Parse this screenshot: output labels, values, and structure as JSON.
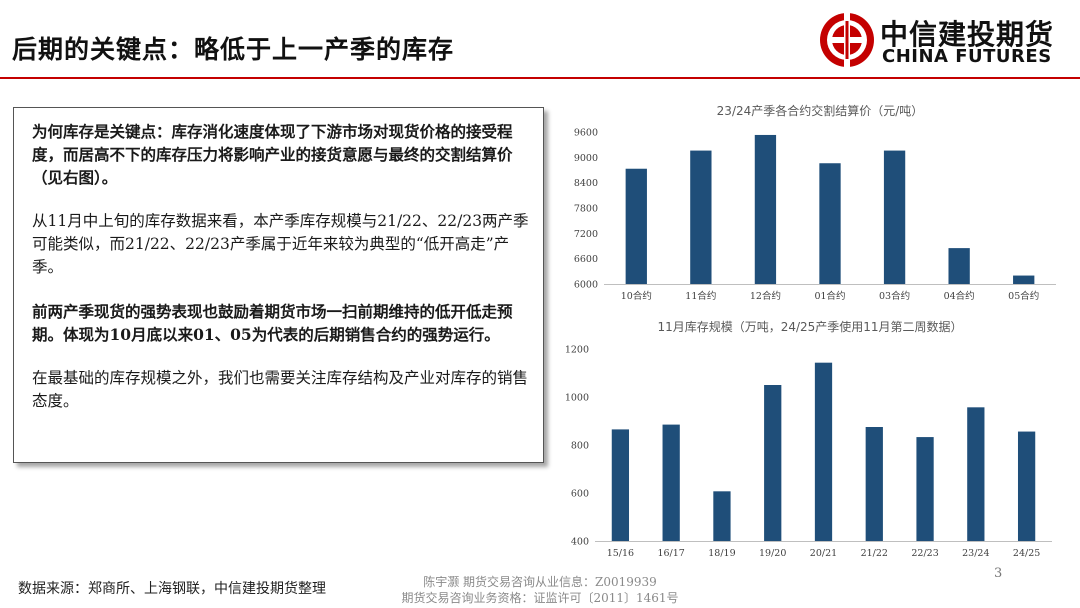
{
  "header": {
    "title": "后期的关键点：略低于上一产季的库存",
    "logo_cn": "中信建投期货",
    "logo_en": "CHINA FUTURES"
  },
  "textbox": {
    "p1": "为何库存是关键点：库存消化速度体现了下游市场对现货价格的接受程度，而居高不下的库存压力将影响产业的接货意愿与最终的交割结算价（见右图）。",
    "p2": "从11月中上旬的库存数据来看，本产季库存规模与21/22、22/23两产季可能类似，而21/22、22/23产季属于近年来较为典型的“低开高走”产季。",
    "p3": "前两产季现货的强势表现也鼓励着期货市场一扫前期维持的低开低走预期。体现为10月底以来01、05为代表的后期销售合约的强势运行。",
    "p4": "在最基础的库存规模之外，我们也需要关注库存结构及产业对库存的销售态度。"
  },
  "colors": {
    "bar": "#1f4e79",
    "accent": "#c40000"
  },
  "chart_data": [
    {
      "type": "bar",
      "title": "23/24产季各合约交割结算价（元/吨）",
      "categories": [
        "10合约",
        "11合约",
        "12合约",
        "01合约",
        "03合约",
        "04合约",
        "05合约"
      ],
      "values": [
        8730,
        9160,
        9530,
        8860,
        9160,
        6850,
        6200
      ],
      "ylim": [
        6000,
        9600
      ],
      "yticks": [
        6000,
        6600,
        7200,
        7800,
        8400,
        9000,
        9600
      ],
      "xlabel": "",
      "ylabel": "",
      "grid": false
    },
    {
      "type": "bar",
      "title": "11月库存规模（万吨，24/25产季使用11月第二周数据）",
      "categories": [
        "15/16",
        "16/17",
        "18/19",
        "19/20",
        "20/21",
        "21/22",
        "22/23",
        "23/24",
        "24/25"
      ],
      "values": [
        865,
        885,
        607,
        1050,
        1143,
        875,
        833,
        957,
        856
      ],
      "ylim": [
        400,
        1200
      ],
      "yticks": [
        400,
        600,
        800,
        1000,
        1200
      ],
      "xlabel": "",
      "ylabel": "",
      "grid": false
    }
  ],
  "footer": {
    "source": "数据来源：郑商所、上海钢联，中信建投期货整理",
    "cert_line1": "陈宇灏 期货交易咨询从业信息：Z0019939",
    "cert_line2": "期货交易咨询业务资格：证监许可〔2011〕1461号",
    "page": "3"
  }
}
